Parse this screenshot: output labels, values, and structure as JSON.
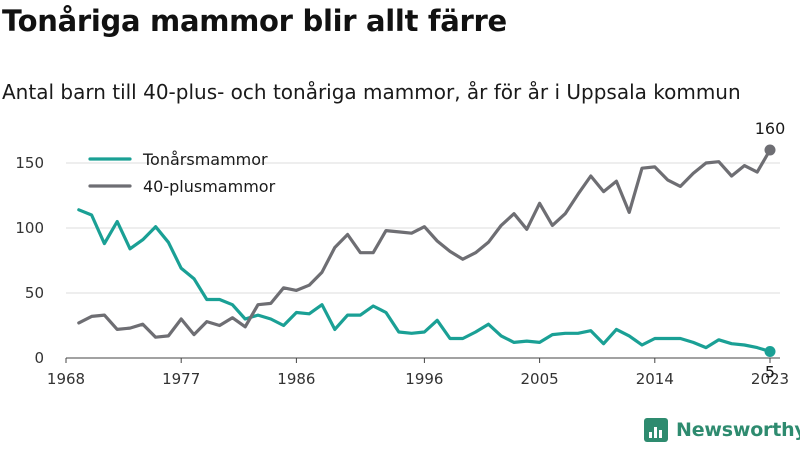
{
  "title": "Tonåriga mammor blir allt färre",
  "subtitle": "Antal barn till 40-plus- och tonåriga mammor, år för år i Uppsala kommun",
  "brand": {
    "name": "Newsworthy",
    "icon": "bar-chart-logo-icon"
  },
  "colors": {
    "teens": "#1aa095",
    "forty_plus": "#6e6e73",
    "grid": "#dcdcdc"
  },
  "chart_data": {
    "type": "line",
    "title": "Tonåriga mammor blir allt färre",
    "subtitle": "Antal barn till 40-plus- och tonåriga mammor, år för år i Uppsala kommun",
    "xlabel": "",
    "ylabel": "",
    "xlim": [
      1968,
      2023
    ],
    "ylim": [
      0,
      160
    ],
    "x_ticks": [
      1968,
      1977,
      1986,
      1996,
      2005,
      2014,
      2023
    ],
    "y_ticks": [
      0,
      50,
      100,
      150
    ],
    "grid": "horizontal",
    "legend": "top-left",
    "x": [
      1969,
      1970,
      1971,
      1972,
      1973,
      1974,
      1975,
      1976,
      1977,
      1978,
      1979,
      1980,
      1981,
      1982,
      1983,
      1984,
      1985,
      1986,
      1987,
      1988,
      1989,
      1990,
      1991,
      1992,
      1993,
      1994,
      1995,
      1996,
      1997,
      1998,
      1999,
      2000,
      2001,
      2002,
      2003,
      2004,
      2005,
      2006,
      2007,
      2008,
      2009,
      2010,
      2011,
      2012,
      2013,
      2014,
      2015,
      2016,
      2017,
      2018,
      2019,
      2020,
      2021,
      2022,
      2023
    ],
    "series": [
      {
        "name": "Tonårsmammor",
        "color": "#1aa095",
        "values": [
          114,
          110,
          88,
          105,
          84,
          91,
          101,
          89,
          69,
          61,
          45,
          45,
          41,
          30,
          33,
          30,
          25,
          35,
          34,
          41,
          22,
          33,
          33,
          40,
          35,
          20,
          19,
          20,
          29,
          15,
          15,
          20,
          26,
          17,
          12,
          13,
          12,
          18,
          19,
          19,
          21,
          11,
          22,
          17,
          10,
          15,
          15,
          15,
          12,
          8,
          14,
          11,
          10,
          8,
          5
        ],
        "end_label": "5"
      },
      {
        "name": "40-plusmammor",
        "color": "#6e6e73",
        "values": [
          27,
          32,
          33,
          22,
          23,
          26,
          16,
          17,
          30,
          18,
          28,
          25,
          31,
          24,
          41,
          42,
          54,
          52,
          56,
          66,
          85,
          95,
          81,
          81,
          98,
          97,
          96,
          101,
          90,
          82,
          76,
          81,
          89,
          102,
          111,
          99,
          119,
          102,
          111,
          126,
          140,
          128,
          136,
          112,
          146,
          147,
          137,
          132,
          142,
          150,
          151,
          140,
          148,
          143,
          160
        ],
        "end_label": "160"
      }
    ]
  }
}
